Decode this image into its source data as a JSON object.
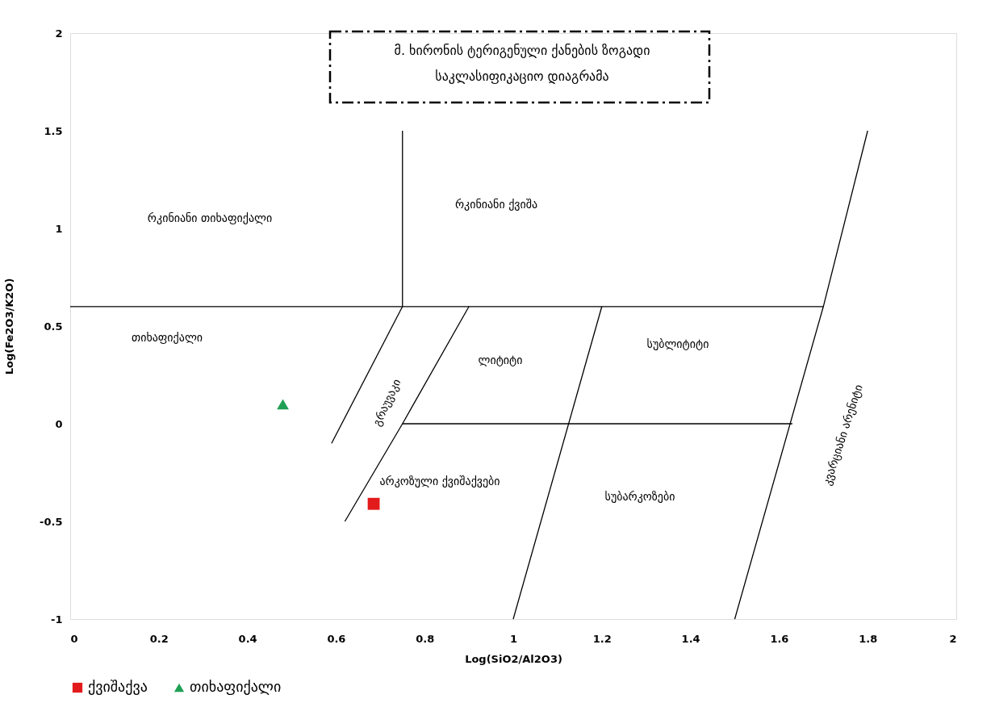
{
  "chart_data": {
    "type": "scatter",
    "title": [
      "მ. ხირონის ტერიგენული ქანების ზოგადი",
      "საკლასიფიკაციო დიაგრამა"
    ],
    "xlabel": "Log(SiO2/Al2O3)",
    "ylabel": "Log(Fe2O3/K2O)",
    "xlim": [
      0,
      2
    ],
    "xticks": [
      0,
      0.2,
      0.4,
      0.6,
      0.8,
      1,
      1.2,
      1.4,
      1.6,
      1.8,
      2
    ],
    "ylim": [
      -1,
      2
    ],
    "yticks": [
      -1,
      -0.5,
      0,
      0.5,
      1,
      1.5,
      2
    ],
    "grid": false,
    "legend": "bottom",
    "series": [
      {
        "type": "line",
        "color": "#000000",
        "x": [
          0,
          1.7
        ],
        "values": [
          0.6,
          0.6
        ]
      },
      {
        "type": "line",
        "color": "#000000",
        "x": [
          0.75,
          0.75
        ],
        "values": [
          0.6,
          1.5
        ]
      },
      {
        "type": "line",
        "color": "#000000",
        "x": [
          0.59,
          0.75
        ],
        "values": [
          -0.1,
          0.6
        ]
      },
      {
        "type": "line",
        "color": "#000000",
        "x": [
          0.62,
          0.75,
          0.9
        ],
        "values": [
          -0.5,
          0,
          0.6
        ]
      },
      {
        "type": "line",
        "color": "#000000",
        "x": [
          1.0,
          1.2
        ],
        "values": [
          -1,
          0.6
        ]
      },
      {
        "type": "line",
        "color": "#000000",
        "x": [
          1.5,
          1.7,
          1.8
        ],
        "values": [
          -1,
          0.6,
          1.5
        ]
      },
      {
        "type": "line",
        "color": "#000000",
        "x": [
          0.75,
          1.63
        ],
        "values": [
          0,
          0
        ]
      },
      {
        "name": "ქვიშაქვა",
        "color": "#e31a1c",
        "marker": "square",
        "x": [
          0.685
        ],
        "values": [
          -0.41
        ]
      },
      {
        "name": "თიხაფიქალი",
        "color": "#1fa055",
        "marker": "triangle",
        "x": [
          0.48
        ],
        "values": [
          0.1
        ]
      }
    ],
    "annotations": [
      "რკინიანი თიხაფიქალი",
      "რკინიანი ქვიშა",
      "თიხაფიქალი",
      "ლიტიტი",
      "სუბლიტიტი",
      "გრაუვაკი",
      "არკოზული ქვიშაქვები",
      "სუბარკოზები",
      "კვარციანი არენიტი"
    ]
  }
}
